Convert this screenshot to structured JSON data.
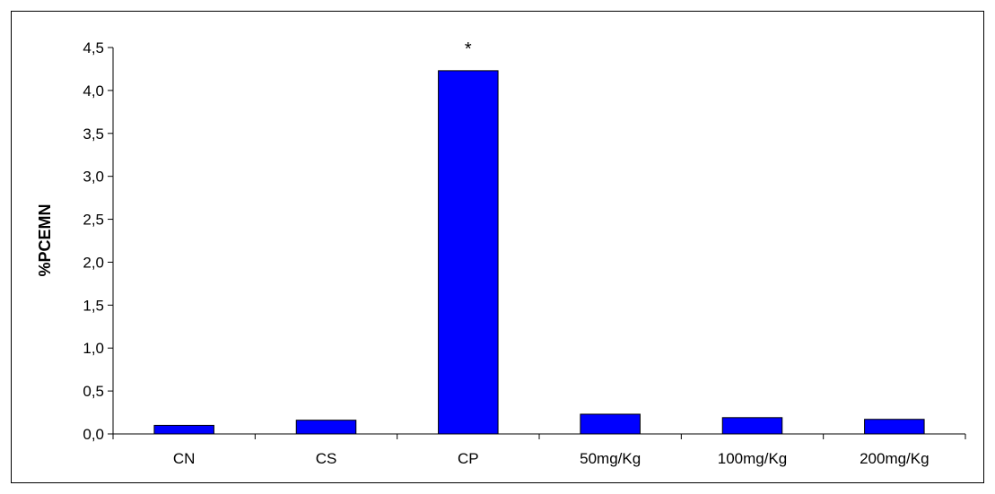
{
  "chart_data": {
    "type": "bar",
    "title": "",
    "xlabel": "",
    "ylabel": "%PCEMN",
    "categories": [
      "CN",
      "CS",
      "CP",
      "50mg/Kg",
      "100mg/Kg",
      "200mg/Kg"
    ],
    "values": [
      0.1,
      0.16,
      4.23,
      0.23,
      0.19,
      0.17
    ],
    "ylim": [
      0,
      4.5
    ],
    "yticks": [
      "0,0",
      "0,5",
      "1,0",
      "1,5",
      "2,0",
      "2,5",
      "3,0",
      "3,5",
      "4,0",
      "4,5"
    ],
    "grid": false,
    "legend": "none",
    "annotations": [
      {
        "category": "CP",
        "text": "*"
      }
    ],
    "colors": {
      "bar": "#0000FF",
      "bar_edge": "#000000",
      "axis": "#000000"
    }
  }
}
